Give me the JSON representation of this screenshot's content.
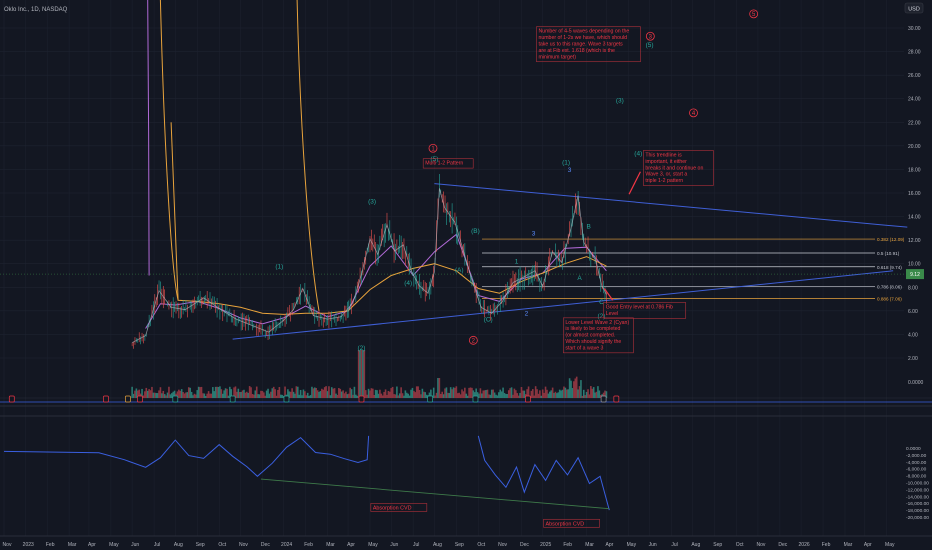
{
  "header": {
    "symbol": "Oklo Inc., 1D, NASDAQ",
    "currency": "USD"
  },
  "colors": {
    "background": "#131722",
    "grid": "#1e2330",
    "axis_text": "#b2b5be",
    "price_line": "#b2b5be",
    "trend_line": "#3f5fd6",
    "ma_orange": "#e8a33c",
    "ma_magenta": "#b06ad6",
    "fib_line": "#e8a33c",
    "fib_white": "#c8cbd4",
    "wave_red": "#f23645",
    "wave_teal": "#26a69a",
    "wave_blue": "#5b8cff",
    "volume_up": "#2a7a72",
    "volume_down": "#8a3540",
    "cvd_line": "#3a5fe0",
    "cvd_trend": "#3e7a4a",
    "price_tag": "#3a8a4a"
  },
  "chart_data": [
    {
      "type": "line",
      "price_axis": {
        "ticks": [
          "30.00",
          "28.00",
          "26.00",
          "24.00",
          "22.00",
          "20.00",
          "18.00",
          "16.00",
          "14.00",
          "12.00",
          "10.00",
          "8.00",
          "6.00",
          "4.00",
          "2.00"
        ],
        "ylim": [
          2,
          31
        ]
      },
      "time_axis": {
        "labels": [
          "Nov",
          "2023",
          "Feb",
          "Mar",
          "Apr",
          "May",
          "Jun",
          "Jul",
          "Aug",
          "Sep",
          "Oct",
          "Nov",
          "Dec",
          "2024",
          "Feb",
          "Mar",
          "Apr",
          "May",
          "Jun",
          "Jul",
          "Aug",
          "Sep",
          "Oct",
          "Nov",
          "Dec",
          "2025",
          "Feb",
          "Mar",
          "Apr",
          "May",
          "Jun",
          "Jul",
          "Aug",
          "Sep",
          "Oct",
          "Nov",
          "Dec",
          "2026",
          "Feb",
          "Mar",
          "Apr",
          "May"
        ]
      },
      "price_series": {
        "name": "Price",
        "x": [
          "2023-05-01",
          "2023-05-20",
          "2023-06-08",
          "2023-06-25",
          "2023-07-15",
          "2023-08-10",
          "2023-09-01",
          "2023-09-25",
          "2023-10-20",
          "2023-11-10",
          "2023-12-01",
          "2023-12-15",
          "2023-12-28",
          "2024-01-12",
          "2024-02-01",
          "2024-02-20",
          "2024-03-08",
          "2024-03-20",
          "2024-04-01",
          "2024-04-12",
          "2024-04-25",
          "2024-05-06",
          "2024-05-18",
          "2024-05-30",
          "2024-06-10",
          "2024-06-22",
          "2024-07-01",
          "2024-07-08",
          "2024-07-15",
          "2024-07-30",
          "2024-08-10",
          "2024-08-22",
          "2024-09-05",
          "2024-09-20",
          "2024-10-05",
          "2024-10-20",
          "2024-11-05",
          "2024-11-20",
          "2024-12-01",
          "2024-12-15",
          "2024-12-28",
          "2025-01-10",
          "2025-01-20",
          "2025-01-28",
          "2025-02-06",
          "2025-02-14",
          "2025-02-22",
          "2025-03-01"
        ],
        "values": [
          3.3,
          3.9,
          7.7,
          6.3,
          6.1,
          7.1,
          6.2,
          5.3,
          4.7,
          4.2,
          5.2,
          6.1,
          7.9,
          5.6,
          5.3,
          5.5,
          6.7,
          9.1,
          12.1,
          10.8,
          13.3,
          11.1,
          11.6,
          9.3,
          8.1,
          7.5,
          9.3,
          16.4,
          14.8,
          13.5,
          11.3,
          8.8,
          6.3,
          5.8,
          6.8,
          8.4,
          8.9,
          9.4,
          8.1,
          11.0,
          10.1,
          13.0,
          15.8,
          11.8,
          11.0,
          10.3,
          8.2,
          7.4
        ]
      },
      "moving_averages": [
        {
          "name": "",
          "x": [
            "2023-05-20",
            "2023-06-10",
            "2023-07-01",
            "2023-08-01",
            "2023-09-01",
            "2023-10-01",
            "2023-11-01",
            "2023-12-01",
            "2024-01-01",
            "2024-02-01",
            "2024-03-01",
            "2024-04-01",
            "2024-05-01",
            "2024-06-01",
            "2024-07-01",
            "2024-08-01",
            "2024-09-01",
            "2024-10-01",
            "2024-11-01",
            "2024-12-01",
            "2025-01-01",
            "2025-02-01",
            "2025-03-01"
          ],
          "values": [
            4.5,
            6.6,
            6.5,
            6.8,
            6.2,
            5.4,
            4.9,
            5.4,
            6.4,
            5.5,
            6.0,
            9.8,
            11.5,
            9.0,
            11.0,
            12.5,
            7.3,
            6.8,
            8.7,
            9.2,
            11.3,
            11.4,
            9.4
          ]
        },
        {
          "name": "",
          "x": [
            "2023-06-25",
            "2023-07-05",
            "2023-08-01",
            "2023-09-01",
            "2023-10-01",
            "2023-11-01",
            "2023-12-01",
            "2024-01-01",
            "2024-02-01",
            "2024-03-01",
            "2024-04-01",
            "2024-05-01",
            "2024-06-01",
            "2024-07-01",
            "2024-08-01",
            "2024-09-01",
            "2024-10-01",
            "2024-11-01",
            "2024-12-01",
            "2025-01-01",
            "2025-02-01",
            "2025-03-01"
          ],
          "values": [
            22.0,
            6.9,
            6.8,
            6.6,
            6.3,
            5.8,
            5.7,
            5.8,
            5.8,
            6.0,
            7.8,
            9.0,
            9.6,
            10.0,
            9.4,
            7.9,
            7.5,
            8.5,
            9.2,
            10.0,
            10.6,
            9.8
          ]
        }
      ],
      "fib_levels": [
        {
          "label": "0.382 (12.09)",
          "value": 12.09
        },
        {
          "label": "0.5 (10.91)",
          "value": 10.91
        },
        {
          "label": "0.618 (9.74)",
          "value": 9.74
        },
        {
          "label": "0.786 (8.06)",
          "value": 8.06
        },
        {
          "label": "0.886 (7.06)",
          "value": 7.06
        }
      ],
      "current_price": {
        "value": 9.12,
        "label": "9.12"
      },
      "wave_labels": [
        {
          "text": "(1)",
          "x": "2023-11-25",
          "y": 9.6,
          "color": "teal"
        },
        {
          "text": "(2)",
          "x": "2024-03-20",
          "y": 2.7,
          "color": "teal"
        },
        {
          "text": "(3)",
          "x": "2024-04-04",
          "y": 15.1,
          "color": "teal"
        },
        {
          "text": "(4)",
          "x": "2024-05-25",
          "y": 8.2,
          "color": "teal"
        },
        {
          "text": "(5)",
          "x": "2024-07-01",
          "y": 18.7,
          "color": "teal"
        },
        {
          "text": "(A)",
          "x": "2024-08-05",
          "y": 9.3,
          "color": "teal"
        },
        {
          "text": "(B)",
          "x": "2024-08-28",
          "y": 12.6,
          "color": "teal"
        },
        {
          "text": "(C)",
          "x": "2024-09-15",
          "y": 5.1,
          "color": "teal"
        },
        {
          "text": "1",
          "x": "2024-10-25",
          "y": 10.0,
          "color": "teal"
        },
        {
          "text": "2",
          "x": "2024-11-08",
          "y": 5.6,
          "color": "blue"
        },
        {
          "text": "3",
          "x": "2024-11-18",
          "y": 12.4,
          "color": "blue"
        },
        {
          "text": "(1)",
          "x": "2025-01-03",
          "y": 18.4,
          "color": "teal"
        },
        {
          "text": "3",
          "x": "2025-01-08",
          "y": 17.8,
          "color": "blue"
        },
        {
          "text": "B",
          "x": "2025-02-04",
          "y": 13.0,
          "color": "teal"
        },
        {
          "text": "A",
          "x": "2025-01-22",
          "y": 8.6,
          "color": "teal"
        },
        {
          "text": "C",
          "x": "2025-02-22",
          "y": 6.6,
          "color": "teal"
        },
        {
          "text": "(2)",
          "x": "2025-02-22",
          "y": 5.4,
          "color": "teal"
        },
        {
          "text": "(3)",
          "x": "2025-03-20",
          "y": 23.7,
          "color": "teal"
        },
        {
          "text": "(4)",
          "x": "2025-04-15",
          "y": 19.2,
          "color": "teal"
        },
        {
          "text": "(5)",
          "x": "2025-05-01",
          "y": 28.4,
          "color": "teal"
        }
      ],
      "circle_labels": [
        {
          "text": "1",
          "x": "2024-06-29",
          "y": 19.8
        },
        {
          "text": "2",
          "x": "2024-08-25",
          "y": 3.5
        },
        {
          "text": "3",
          "x": "2025-05-02",
          "y": 29.3
        },
        {
          "text": "4",
          "x": "2025-07-02",
          "y": 22.8
        },
        {
          "text": "5",
          "x": "2025-09-25",
          "y": 31.2
        }
      ],
      "trend_lines": [
        {
          "name": "upper",
          "x": [
            "2024-07-01",
            "2026-04-30"
          ],
          "y": [
            16.8,
            13.1
          ]
        },
        {
          "name": "lower",
          "x": [
            "2023-09-20",
            "2026-04-10"
          ],
          "y": [
            3.6,
            9.4
          ]
        }
      ],
      "annotations": [
        {
          "text": "Number of 4-5 waves depending on the number of 1-2s we have, which should take us to this range.  Wave 3 targets are at Fib ext. 1.618 (which is the minimum target)",
          "x": "2024-11-25",
          "y": 29.6,
          "kind": "box"
        },
        {
          "text": "Multi 1-2 Pattern",
          "x": "2024-06-18",
          "y": 18.4,
          "kind": "box"
        },
        {
          "text": "This trendline is important, it either breaks it and continue on Wave 3, or, start a triple 1-2 pattern",
          "x": "2025-04-25",
          "y": 19.1,
          "kind": "box"
        },
        {
          "text": "Good Entry level at 0.786 Fib Level",
          "x": "2025-02-28",
          "y": 6.2,
          "kind": "box"
        },
        {
          "text": "Lower Level Wave 2 (Cyan) is likely to be completed (or almost completed.  Which should signify the start of a wave 3",
          "x": "2025-01-02",
          "y": 4.9,
          "kind": "box"
        }
      ]
    },
    {
      "type": "bar",
      "name": "",
      "description_axis_tick": "0.0000",
      "baseline": 0,
      "bars_up_share": 0.55
    },
    {
      "type": "line",
      "cvd_axis": {
        "ticks": [
          "0.0000",
          "-2,000.00",
          "-4,000.00",
          "-6,000.00",
          "-8,000.00",
          "-10,000.00",
          "-12,000.00",
          "-14,000.00",
          "-16,000.00",
          "-18,000.00",
          "-20,000.00"
        ],
        "ylim": [
          -21000,
          1000
        ]
      },
      "series": [
        {
          "name": "",
          "x": [
            "2022-11-01",
            "2023-03-15",
            "2023-04-20",
            "2023-05-20",
            "2023-06-10",
            "2023-07-01",
            "2023-07-20",
            "2023-08-10",
            "2023-09-01",
            "2023-09-20",
            "2023-10-10",
            "2023-10-25",
            "2023-11-15",
            "2023-12-05",
            "2023-12-25",
            "2024-01-15",
            "2024-02-05",
            "2024-02-25",
            "2024-03-15",
            "2024-03-28",
            "2024-03-30"
          ],
          "values": [
            -1000,
            -1400,
            -3400,
            -5600,
            -2800,
            2300,
            -2200,
            -3000,
            1000,
            -2400,
            -5400,
            -8200,
            -4400,
            200,
            3000,
            -1300,
            -1800,
            -3100,
            -4200,
            -3400,
            3500
          ]
        },
        {
          "name": "",
          "x": [
            "2024-09-01",
            "2024-09-10",
            "2024-09-25",
            "2024-10-10",
            "2024-10-25",
            "2024-11-05",
            "2024-11-20",
            "2024-12-05",
            "2024-12-20",
            "2025-01-05",
            "2025-01-20",
            "2025-02-05",
            "2025-02-20",
            "2025-03-05"
          ],
          "values": [
            3500,
            -3600,
            -7800,
            -11400,
            -5500,
            -12800,
            -4800,
            -9400,
            -3600,
            -7800,
            -2800,
            -10300,
            -8200,
            -18000
          ]
        }
      ],
      "trend_line": {
        "x": [
          "2023-10-30",
          "2025-03-05"
        ],
        "y": [
          -9000,
          -17600
        ]
      },
      "annotations": [
        {
          "text": "Absorption CVD",
          "x": "2024-04-05",
          "y": -17800
        },
        {
          "text": "Absorption CVD",
          "x": "2024-12-05",
          "y": -22400
        }
      ]
    }
  ]
}
